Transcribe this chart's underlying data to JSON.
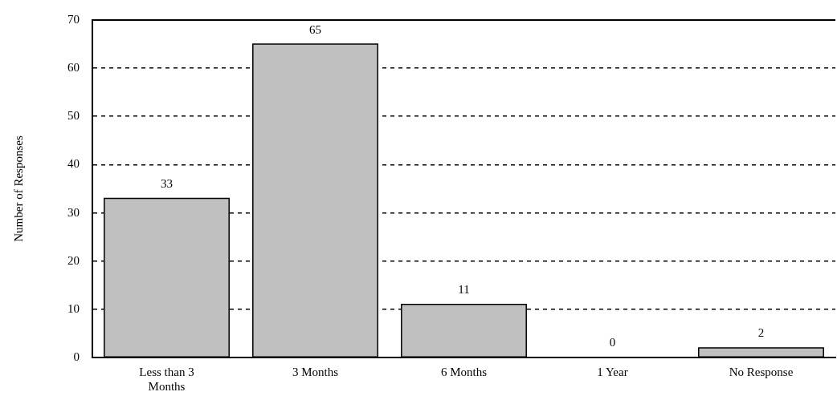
{
  "chart_data": {
    "type": "bar",
    "ylabel": "Number of Responses",
    "categories": [
      "Less than 3 Months",
      "3 Months",
      "6 Months",
      "1 Year",
      "No Response"
    ],
    "values": [
      33,
      65,
      11,
      0,
      2
    ],
    "color": "#c0c0c0",
    "ylim": [
      0,
      70
    ],
    "yticks": [
      0,
      10,
      20,
      30,
      40,
      50,
      60,
      70
    ],
    "grid": "y",
    "data_labels": true
  }
}
